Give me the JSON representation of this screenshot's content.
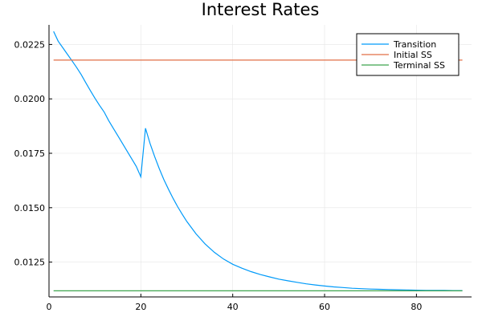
{
  "chart_data": {
    "type": "line",
    "title": "Interest Rates",
    "xlabel": "",
    "ylabel": "",
    "xlim": [
      0,
      92
    ],
    "ylim": [
      0.0109,
      0.0234
    ],
    "xticks": [
      0,
      20,
      40,
      60,
      80
    ],
    "xtick_labels": [
      "0",
      "20",
      "40",
      "60",
      "80"
    ],
    "yticks": [
      0.0125,
      0.015,
      0.0175,
      0.02,
      0.0225
    ],
    "ytick_labels": [
      "0.0125",
      "0.0150",
      "0.0175",
      "0.0200",
      "0.0225"
    ],
    "grid": true,
    "legend_position": "top-right",
    "series": [
      {
        "name": "Transition",
        "color": "#009AF9",
        "x": [
          1,
          2,
          3,
          4,
          5,
          6,
          7,
          8,
          9,
          10,
          11,
          12,
          13,
          14,
          15,
          16,
          17,
          18,
          19,
          20,
          21,
          22,
          23,
          24,
          25,
          26,
          27,
          28,
          29,
          30,
          32,
          34,
          36,
          38,
          40,
          42,
          44,
          46,
          48,
          50,
          52,
          54,
          56,
          58,
          60,
          62,
          64,
          66,
          68,
          70,
          72,
          74,
          76,
          78,
          80,
          82,
          84,
          86,
          88,
          90
        ],
        "y": [
          0.0231,
          0.02265,
          0.02235,
          0.02205,
          0.02175,
          0.02145,
          0.02112,
          0.02075,
          0.02038,
          0.02003,
          0.0197,
          0.0194,
          0.019,
          0.01865,
          0.0183,
          0.01795,
          0.0176,
          0.01725,
          0.0169,
          0.01642,
          0.01865,
          0.01795,
          0.01735,
          0.0168,
          0.0163,
          0.01585,
          0.01543,
          0.01505,
          0.0147,
          0.01437,
          0.0138,
          0.01333,
          0.01295,
          0.01264,
          0.0124,
          0.01222,
          0.01206,
          0.01193,
          0.01182,
          0.01172,
          0.01164,
          0.01157,
          0.0115,
          0.01145,
          0.0114,
          0.01136,
          0.01133,
          0.0113,
          0.01128,
          0.01126,
          0.01125,
          0.01124,
          0.01123,
          0.01122,
          0.01121,
          0.0112,
          0.0112,
          0.0112,
          0.01119,
          0.01119
        ]
      },
      {
        "name": "Initial SS",
        "color": "#E26F46",
        "x": [
          1,
          90
        ],
        "y": [
          0.02178,
          0.02178
        ]
      },
      {
        "name": "Terminal SS",
        "color": "#3DA44D",
        "x": [
          1,
          90
        ],
        "y": [
          0.01118,
          0.01118
        ]
      }
    ]
  }
}
